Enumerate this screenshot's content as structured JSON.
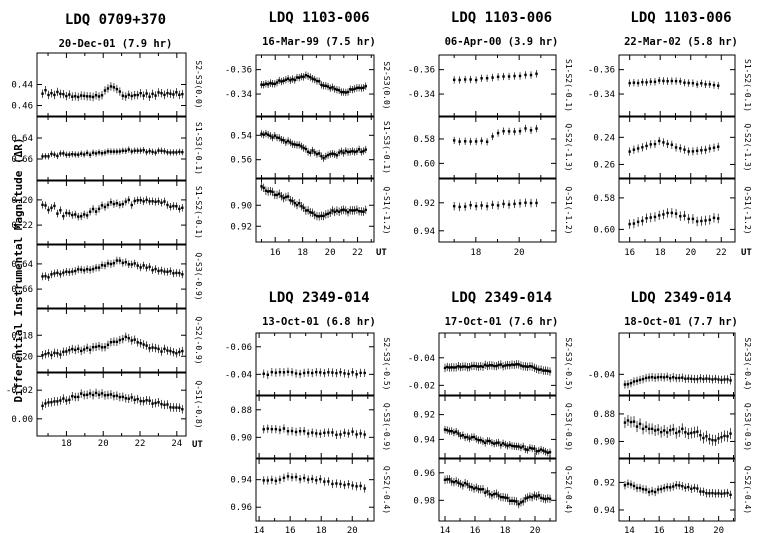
{
  "figure": {
    "ylabel": "Differential Instrumental Magnitude (ΔR)"
  },
  "chart_data": [
    {
      "type": "scatter",
      "title": "LDQ 0709+370",
      "subtitle": "20-Dec-01 (7.9 hr)",
      "xlabel": "UT",
      "xlim": [
        16.4,
        24.5
      ],
      "xticks": [
        18,
        20,
        22,
        24
      ],
      "x_start": 16.7,
      "x_end": 24.3,
      "panels": [
        {
          "label": "S2-S3(0.0)",
          "ylim": [
            0.47,
            0.41
          ],
          "yticks": [
            "0.44",
            "0.46"
          ],
          "tick_values": [
            0.44,
            0.46
          ],
          "base": 0.448,
          "noise": 0.003,
          "errbar": 0.004,
          "npts": 48,
          "shape": [
            [
              0,
              0.0
            ],
            [
              0.4,
              0.004
            ],
            [
              0.5,
              -0.006
            ],
            [
              0.6,
              0.003
            ],
            [
              1,
              0.0
            ]
          ]
        },
        {
          "label": "S1-S3(-0.1)",
          "ylim": [
            0.68,
            0.62
          ],
          "yticks": [
            "0.64",
            "0.66"
          ],
          "tick_values": [
            0.64,
            0.66
          ],
          "base": 0.655,
          "noise": 0.002,
          "errbar": 0.003,
          "npts": 48,
          "shape": [
            [
              0,
              0.002
            ],
            [
              0.3,
              0.0
            ],
            [
              0.6,
              -0.003
            ],
            [
              1,
              -0.001
            ]
          ]
        },
        {
          "label": "S1-S2(-0.1)",
          "ylim": [
            0.235,
            0.185
          ],
          "yticks": [
            "0.20",
            "0.22"
          ],
          "tick_values": [
            0.2,
            0.22
          ],
          "base": 0.205,
          "noise": 0.004,
          "errbar": 0.003,
          "npts": 48,
          "shape": [
            [
              0,
              0.0
            ],
            [
              0.25,
              0.008
            ],
            [
              0.5,
              -0.002
            ],
            [
              0.75,
              -0.004
            ],
            [
              1,
              0.0
            ]
          ]
        },
        {
          "label": "Q-S3(-0.9)",
          "ylim": [
            0.675,
            0.625
          ],
          "yticks": [
            "0.64",
            "0.66"
          ],
          "tick_values": [
            0.64,
            0.66
          ],
          "base": 0.645,
          "noise": 0.002,
          "errbar": 0.003,
          "npts": 48,
          "shape": [
            [
              0,
              0.005
            ],
            [
              0.3,
              0.0
            ],
            [
              0.55,
              -0.007
            ],
            [
              0.8,
              -0.001
            ],
            [
              1,
              0.003
            ]
          ]
        },
        {
          "label": "Q-S2(-0.9)",
          "ylim": [
            0.215,
            0.155
          ],
          "yticks": [
            "0.18",
            "0.20"
          ],
          "tick_values": [
            0.18,
            0.2
          ],
          "base": 0.193,
          "noise": 0.003,
          "errbar": 0.004,
          "npts": 48,
          "shape": [
            [
              0,
              0.005
            ],
            [
              0.45,
              -0.003
            ],
            [
              0.6,
              -0.01
            ],
            [
              0.8,
              0.0
            ],
            [
              1,
              0.004
            ]
          ]
        },
        {
          "label": "Q-S1(-0.8)",
          "ylim": [
            0.012,
            -0.032
          ],
          "yticks": [
            "-0.02",
            "0.00"
          ],
          "tick_values": [
            -0.02,
            0.0
          ],
          "base": -0.01,
          "noise": 0.002,
          "errbar": 0.003,
          "npts": 48,
          "shape": [
            [
              0,
              0.0
            ],
            [
              0.35,
              -0.008
            ],
            [
              0.6,
              -0.005
            ],
            [
              1,
              0.003
            ]
          ]
        }
      ]
    },
    {
      "type": "scatter",
      "title": "LDQ 1103-006",
      "subtitle": "16-Mar-99 (7.5 hr)",
      "xlabel": "UT",
      "xlim": [
        14.6,
        23.2
      ],
      "xticks": [
        16,
        18,
        20,
        22
      ],
      "x_start": 15.0,
      "x_end": 22.6,
      "panels": [
        {
          "label": "S2-S3(0.0)",
          "ylim": [
            -0.322,
            -0.372
          ],
          "yticks": [
            "-0.36",
            "-0.34"
          ],
          "tick_values": [
            -0.36,
            -0.34
          ],
          "base": -0.347,
          "noise": 0.002,
          "errbar": 0.003,
          "npts": 48,
          "shape": [
            [
              0,
              0.0
            ],
            [
              0.45,
              -0.008
            ],
            [
              0.6,
              0.0
            ],
            [
              0.8,
              0.006
            ],
            [
              1,
              0.0
            ]
          ]
        },
        {
          "label": "S1-S3(-0.1)",
          "ylim": [
            0.575,
            0.525
          ],
          "yticks": [
            "0.54",
            "0.56"
          ],
          "tick_values": [
            0.54,
            0.56
          ],
          "base": 0.546,
          "noise": 0.002,
          "errbar": 0.003,
          "npts": 48,
          "shape": [
            [
              0,
              -0.008
            ],
            [
              0.3,
              0.0
            ],
            [
              0.6,
              0.012
            ],
            [
              0.75,
              0.008
            ],
            [
              1,
              0.006
            ]
          ]
        },
        {
          "label": "Q-S1(-1.2)",
          "ylim": [
            0.935,
            0.875
          ],
          "yticks": [
            "0.90",
            "0.92"
          ],
          "tick_values": [
            0.9,
            0.92
          ],
          "base": 0.893,
          "noise": 0.003,
          "errbar": 0.004,
          "npts": 48,
          "shape": [
            [
              0,
              -0.01
            ],
            [
              0.25,
              0.0
            ],
            [
              0.55,
              0.018
            ],
            [
              0.75,
              0.012
            ],
            [
              1,
              0.012
            ]
          ]
        }
      ]
    },
    {
      "type": "scatter",
      "title": "LDQ 1103-006",
      "subtitle": "06-Apr-00 (3.9 hr)",
      "xlabel": "",
      "xlim": [
        16.3,
        21.7
      ],
      "xticks": [
        18,
        20
      ],
      "x_start": 17.0,
      "x_end": 20.8,
      "panels": [
        {
          "label": "S1-S2(-0.1)",
          "ylim": [
            -0.322,
            -0.372
          ],
          "yticks": [
            "-0.36",
            "-0.34"
          ],
          "tick_values": [
            -0.36,
            -0.34
          ],
          "base": -0.351,
          "noise": 0.001,
          "errbar": 0.003,
          "npts": 16,
          "shape": [
            [
              0,
              0.0
            ],
            [
              1,
              -0.005
            ]
          ]
        },
        {
          "label": "Q-S2(-1.3)",
          "ylim": [
            0.612,
            0.562
          ],
          "yticks": [
            "0.58",
            "0.60"
          ],
          "tick_values": [
            0.58,
            0.6
          ],
          "base": 0.582,
          "noise": 0.002,
          "errbar": 0.003,
          "npts": 16,
          "shape": [
            [
              0,
              0.0
            ],
            [
              0.4,
              0.0
            ],
            [
              0.55,
              -0.008
            ],
            [
              1,
              -0.01
            ]
          ]
        },
        {
          "label": "Q-S1(-1.2)",
          "ylim": [
            0.948,
            0.903
          ],
          "yticks": [
            "0.92",
            "0.94"
          ],
          "tick_values": [
            0.92,
            0.94
          ],
          "base": 0.923,
          "noise": 0.001,
          "errbar": 0.003,
          "npts": 16,
          "shape": [
            [
              0,
              0.0
            ],
            [
              1,
              -0.003
            ]
          ]
        }
      ]
    },
    {
      "type": "scatter",
      "title": "LDQ 1103-006",
      "subtitle": "22-Mar-02 (5.8 hr)",
      "xlabel": "UT",
      "xlim": [
        15.3,
        22.9
      ],
      "xticks": [
        16,
        18,
        20,
        22
      ],
      "x_start": 16.0,
      "x_end": 21.8,
      "panels": [
        {
          "label": "S1-S2(-0.1)",
          "ylim": [
            -0.322,
            -0.372
          ],
          "yticks": [
            "-0.36",
            "-0.34"
          ],
          "tick_values": [
            -0.36,
            -0.34
          ],
          "base": -0.349,
          "noise": 0.001,
          "errbar": 0.003,
          "npts": 22,
          "shape": [
            [
              0,
              0.0
            ],
            [
              0.4,
              -0.002
            ],
            [
              1,
              0.002
            ]
          ]
        },
        {
          "label": "Q-S2(-1.3)",
          "ylim": [
            0.27,
            0.225
          ],
          "yticks": [
            "0.24",
            "0.26"
          ],
          "tick_values": [
            0.24,
            0.26
          ],
          "base": 0.247,
          "noise": 0.001,
          "errbar": 0.003,
          "npts": 22,
          "shape": [
            [
              0,
              0.003
            ],
            [
              0.35,
              -0.004
            ],
            [
              0.7,
              0.004
            ],
            [
              1,
              0.0
            ]
          ]
        },
        {
          "label": "Q-S1(-1.2)",
          "ylim": [
            0.608,
            0.568
          ],
          "yticks": [
            "0.58",
            "0.60"
          ],
          "tick_values": [
            0.58,
            0.6
          ],
          "base": 0.593,
          "noise": 0.001,
          "errbar": 0.003,
          "npts": 22,
          "shape": [
            [
              0,
              0.004
            ],
            [
              0.45,
              -0.004
            ],
            [
              0.8,
              0.002
            ],
            [
              1,
              0.0
            ]
          ]
        }
      ]
    },
    {
      "type": "scatter",
      "title": "LDQ 2349-014",
      "subtitle": "13-Oct-01 (6.8 hr)",
      "xlabel": "",
      "xlim": [
        13.8,
        21.4
      ],
      "xticks": [
        14,
        16,
        18,
        20
      ],
      "x_start": 14.3,
      "x_end": 20.8,
      "panels": [
        {
          "label": "S2-S3(-0.5)",
          "ylim": [
            -0.025,
            -0.07
          ],
          "yticks": [
            "-0.06",
            "-0.04"
          ],
          "tick_values": [
            -0.06,
            -0.04
          ],
          "base": -0.041,
          "noise": 0.002,
          "errbar": 0.003,
          "npts": 26,
          "shape": [
            [
              0,
              0.0
            ],
            [
              1,
              0.0
            ]
          ]
        },
        {
          "label": "Q-S3(-0.9)",
          "ylim": [
            0.915,
            0.87
          ],
          "yticks": [
            "0.88",
            "0.90"
          ],
          "tick_values": [
            0.88,
            0.9
          ],
          "base": 0.893,
          "noise": 0.002,
          "errbar": 0.003,
          "npts": 26,
          "shape": [
            [
              0,
              0.0
            ],
            [
              0.5,
              0.004
            ],
            [
              1,
              0.004
            ]
          ]
        },
        {
          "label": "Q-S2(-0.4)",
          "ylim": [
            0.97,
            0.925
          ],
          "yticks": [
            "0.94",
            "0.96"
          ],
          "tick_values": [
            0.94,
            0.96
          ],
          "base": 0.94,
          "noise": 0.002,
          "errbar": 0.003,
          "npts": 26,
          "shape": [
            [
              0,
              0.0
            ],
            [
              0.3,
              -0.002
            ],
            [
              1,
              0.006
            ]
          ]
        }
      ]
    },
    {
      "type": "scatter",
      "title": "LDQ 2349-014",
      "subtitle": "17-Oct-01 (7.6 hr)",
      "xlabel": "",
      "xlim": [
        13.6,
        21.4
      ],
      "xticks": [
        14,
        16,
        18,
        20
      ],
      "x_start": 14.0,
      "x_end": 21.0,
      "panels": [
        {
          "label": "S2-S3(-0.5)",
          "ylim": [
            -0.013,
            -0.058
          ],
          "yticks": [
            "-0.04",
            "-0.02"
          ],
          "tick_values": [
            -0.04,
            -0.02
          ],
          "base": -0.033,
          "noise": 0.001,
          "errbar": 0.003,
          "npts": 48,
          "shape": [
            [
              0,
              0.0
            ],
            [
              0.7,
              -0.002
            ],
            [
              1,
              0.003
            ]
          ]
        },
        {
          "label": "Q-S3(-0.9)",
          "ylim": [
            0.955,
            0.905
          ],
          "yticks": [
            "0.92",
            "0.94"
          ],
          "tick_values": [
            0.92,
            0.94
          ],
          "base": 0.938,
          "noise": 0.002,
          "errbar": 0.003,
          "npts": 48,
          "shape": [
            [
              0,
              -0.006
            ],
            [
              0.2,
              0.0
            ],
            [
              0.6,
              0.007
            ],
            [
              1,
              0.012
            ]
          ]
        },
        {
          "label": "Q-S2(-0.4)",
          "ylim": [
            0.995,
            0.95
          ],
          "yticks": [
            "0.96",
            "0.98"
          ],
          "tick_values": [
            0.96,
            0.98
          ],
          "base": 0.97,
          "noise": 0.002,
          "errbar": 0.003,
          "npts": 48,
          "shape": [
            [
              0,
              -0.006
            ],
            [
              0.25,
              0.0
            ],
            [
              0.7,
              0.012
            ],
            [
              0.85,
              0.006
            ],
            [
              1,
              0.01
            ]
          ]
        }
      ]
    },
    {
      "type": "scatter",
      "title": "LDQ 2349-014",
      "subtitle": "18-Oct-01 (7.7 hr)",
      "xlabel": "",
      "xlim": [
        13.3,
        21.1
      ],
      "xticks": [
        14,
        16,
        18,
        20
      ],
      "x_start": 13.7,
      "x_end": 20.8,
      "panels": [
        {
          "label": "S2-S3(-0.4)",
          "ylim": [
            -0.025,
            -0.07
          ],
          "yticks": [
            "-0.04"
          ],
          "tick_values": [
            -0.04
          ],
          "base": -0.036,
          "noise": 0.001,
          "errbar": 0.003,
          "npts": 36,
          "shape": [
            [
              0,
              0.003
            ],
            [
              0.25,
              -0.002
            ],
            [
              1,
              0.0
            ]
          ]
        },
        {
          "label": "Q-S3(-0.9)",
          "ylim": [
            0.912,
            0.867
          ],
          "yticks": [
            "0.88",
            "0.90"
          ],
          "tick_values": [
            0.88,
            0.9
          ],
          "base": 0.887,
          "noise": 0.003,
          "errbar": 0.004,
          "npts": 36,
          "shape": [
            [
              0,
              -0.002
            ],
            [
              0.3,
              0.005
            ],
            [
              0.6,
              0.006
            ],
            [
              0.85,
              0.012
            ],
            [
              1,
              0.008
            ]
          ]
        },
        {
          "label": "Q-S2(-0.4)",
          "ylim": [
            0.948,
            0.903
          ],
          "yticks": [
            "0.92",
            "0.94"
          ],
          "tick_values": [
            0.92,
            0.94
          ],
          "base": 0.923,
          "noise": 0.002,
          "errbar": 0.003,
          "npts": 36,
          "shape": [
            [
              0,
              -0.002
            ],
            [
              0.25,
              0.004
            ],
            [
              0.5,
              -0.002
            ],
            [
              0.8,
              0.005
            ],
            [
              1,
              0.006
            ]
          ]
        }
      ]
    }
  ]
}
